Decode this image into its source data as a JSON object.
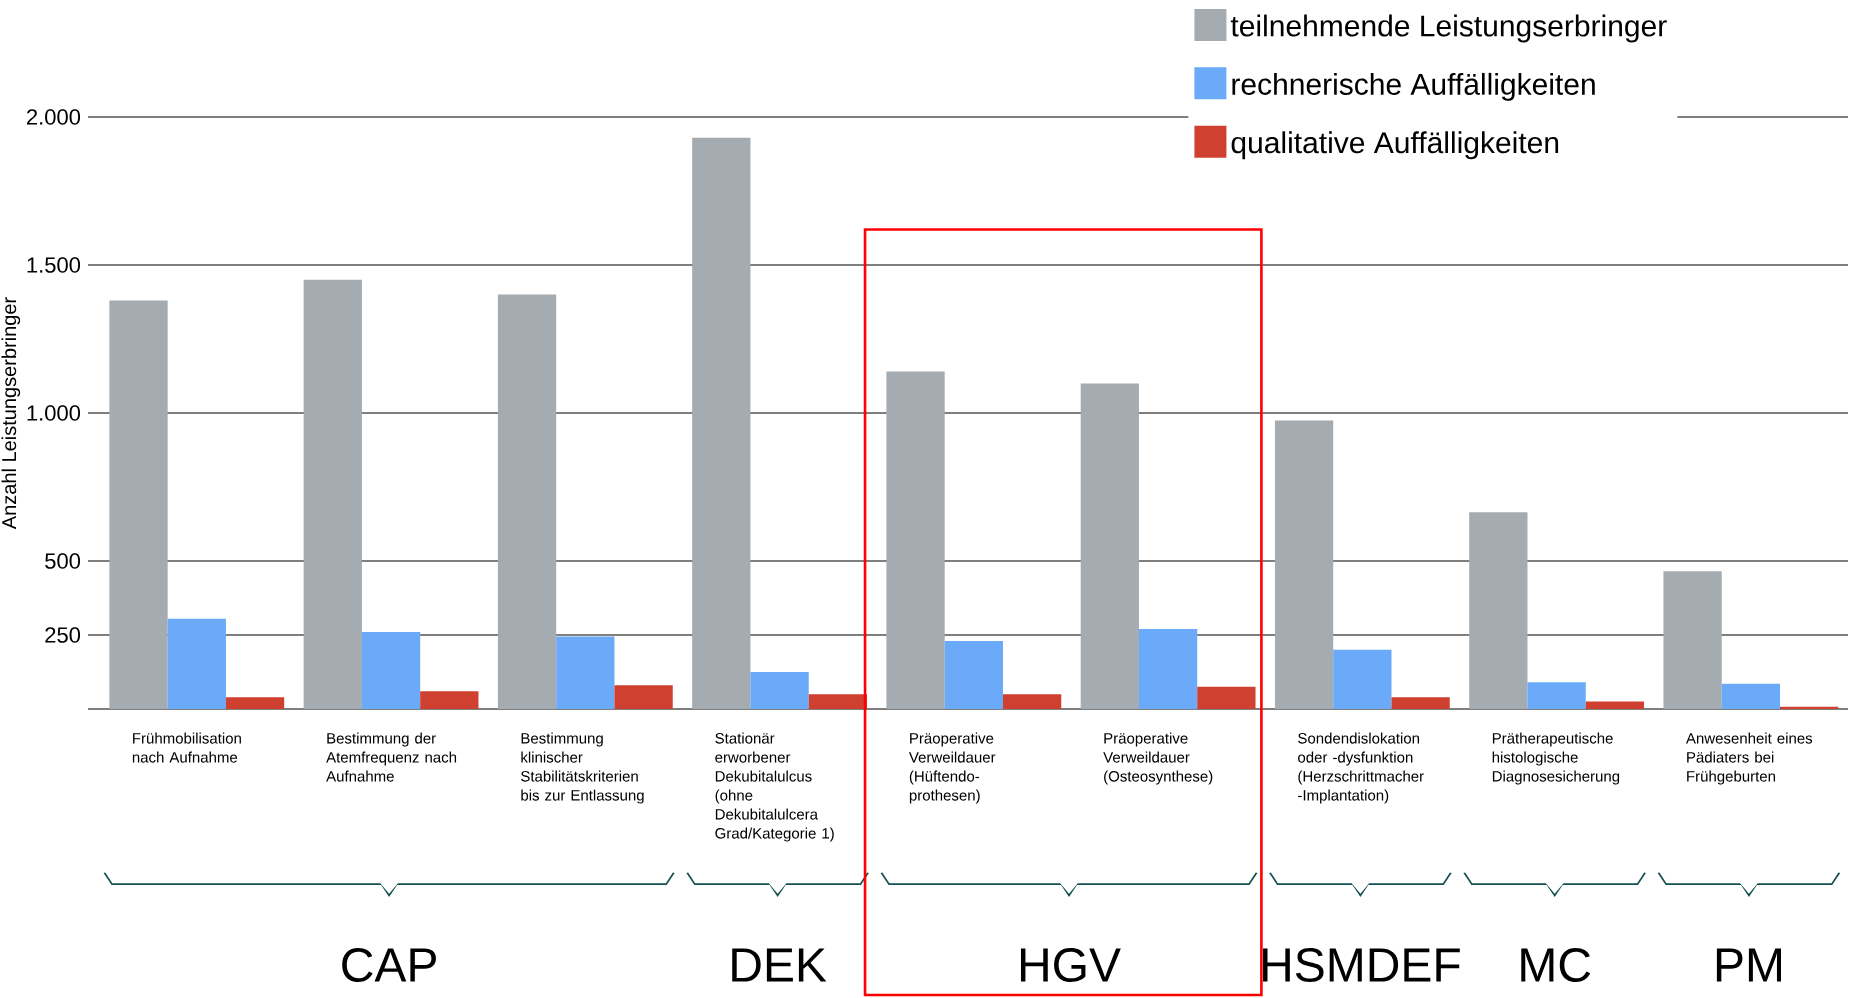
{
  "chart_data": {
    "type": "bar",
    "ylabel": "Anzahl Leistungserbringer",
    "categories": [
      "Frühmobilisation nach Aufnahme",
      "Bestimmung der Atemfrequenz nach Aufnahme",
      "Bestimmung klinischer Stabilitätskriterien bis zur Entlassung",
      "Stationär erworbener Dekubitalulcus (ohne Dekubitalulcera Grad/Kategorie 1)",
      "Präoperative Verweildauer (Hüftendo-prothesen)",
      "Präoperative Verweildauer (Osteosynthese)",
      "Sondendislokation oder -dysfunktion (Herzschrittmacher -Implantation)",
      "Prätherapeutische histologische Diagnosesicherung",
      "Anwesenheit eines Pädiaters bei Frühgeburten"
    ],
    "series": [
      {
        "name": "teilnehmende  Leistungserbringer",
        "color": "#a4abb1",
        "values": [
          1380,
          1450,
          1400,
          1930,
          1140,
          1100,
          975,
          665,
          465
        ]
      },
      {
        "name": "rechnerische  Auffälligkeiten",
        "color": "#6aaaf8",
        "values": [
          305,
          260,
          245,
          125,
          230,
          270,
          200,
          90,
          85
        ]
      },
      {
        "name": "qualitative  Auffälligkeiten",
        "color": "#d04030",
        "values": [
          40,
          60,
          80,
          50,
          50,
          75,
          40,
          25,
          8
        ]
      }
    ],
    "ylim": [
      0,
      2000
    ],
    "yticks": [
      250,
      500,
      {
        "value": 1000,
        "label": "1.000"
      },
      {
        "value": 1500,
        "label": "1.500"
      },
      {
        "value": 2000,
        "label": "2.000"
      }
    ],
    "grid": "y",
    "legend": "top right",
    "annotations": [
      "CAP",
      "DEK",
      "HGV",
      "HSMDEF",
      "MC",
      "PM"
    ]
  }
}
